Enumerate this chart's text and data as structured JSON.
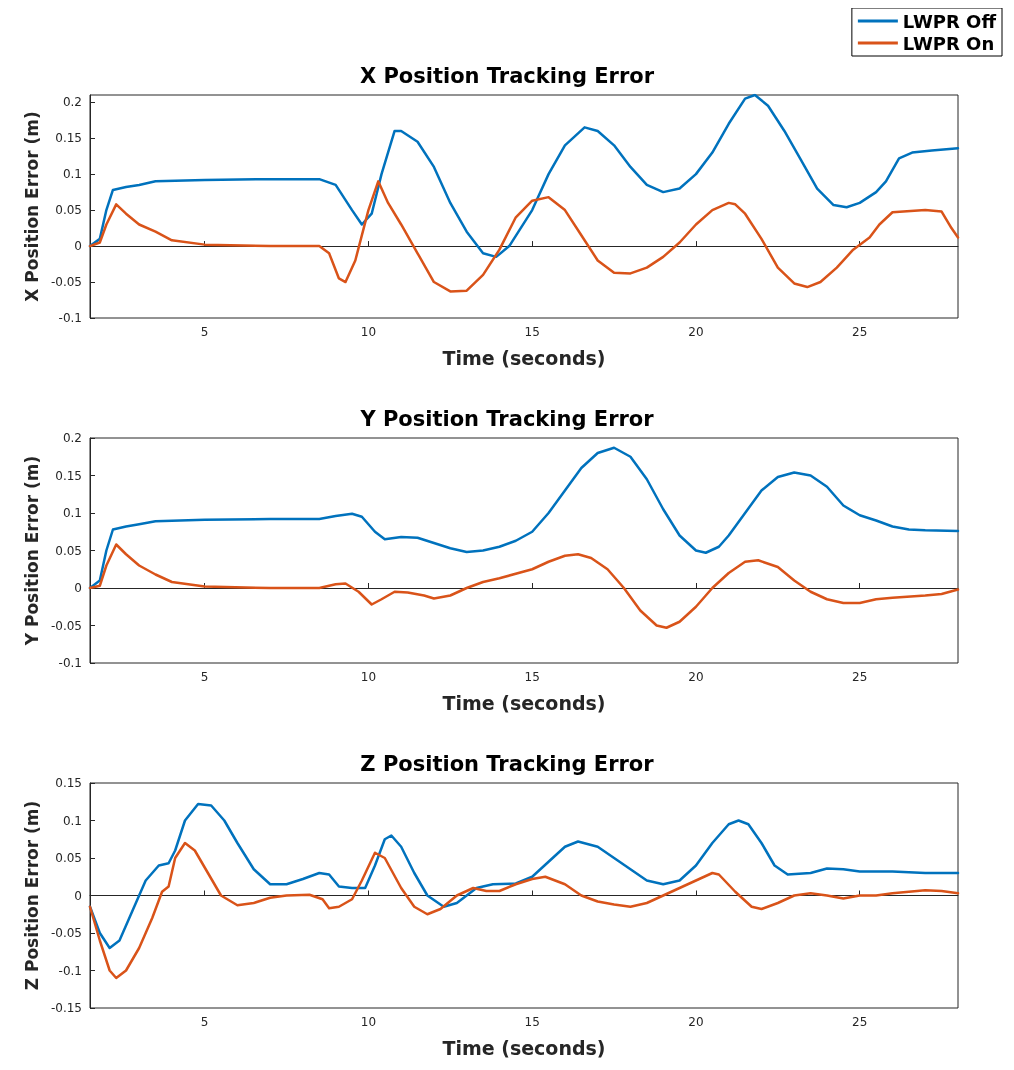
{
  "chart_data": [
    {
      "type": "line",
      "title": "X Position Tracking Error",
      "xlabel": "Time (seconds)",
      "ylabel": "X Position Error (m)",
      "xlim": [
        1.5,
        28
      ],
      "ylim": [
        -0.1,
        0.21
      ],
      "xticks": [
        5,
        10,
        15,
        20,
        25
      ],
      "yticks": [
        -0.1,
        -0.05,
        0,
        0.05,
        0.1,
        0.15,
        0.2
      ],
      "legend": "top right",
      "marker": "none",
      "line_style": "solid",
      "series": [
        {
          "name": "LWPR Off",
          "color": "#0072bd",
          "x": [
            1.5,
            1.8,
            2.0,
            2.2,
            2.6,
            3.0,
            3.5,
            5,
            7,
            8.5,
            9.0,
            9.5,
            9.8,
            10.1,
            10.4,
            10.8,
            11.0,
            11.5,
            12,
            12.5,
            13,
            13.5,
            13.9,
            14.3,
            15,
            15.5,
            16,
            16.6,
            17,
            17.5,
            18,
            18.5,
            19,
            19.5,
            20,
            20.5,
            21,
            21.5,
            21.8,
            22.2,
            22.7,
            23.2,
            23.7,
            24.2,
            24.6,
            25,
            25.5,
            25.8,
            26.2,
            26.6,
            27.2,
            28
          ],
          "values": [
            0,
            0.01,
            0.05,
            0.078,
            0.082,
            0.085,
            0.09,
            0.092,
            0.093,
            0.093,
            0.085,
            0.05,
            0.03,
            0.045,
            0.1,
            0.16,
            0.16,
            0.145,
            0.11,
            0.06,
            0.02,
            -0.01,
            -0.015,
            0,
            0.05,
            0.1,
            0.14,
            0.165,
            0.16,
            0.14,
            0.11,
            0.085,
            0.075,
            0.08,
            0.1,
            0.13,
            0.17,
            0.205,
            0.21,
            0.195,
            0.16,
            0.12,
            0.08,
            0.057,
            0.054,
            0.06,
            0.075,
            0.09,
            0.122,
            0.13,
            0.133,
            0.136
          ]
        },
        {
          "name": "LWPR On",
          "color": "#d95319",
          "x": [
            1.5,
            1.8,
            2.0,
            2.3,
            2.6,
            3,
            3.5,
            4,
            5,
            7,
            8.5,
            8.8,
            9.1,
            9.3,
            9.6,
            10,
            10.3,
            10.6,
            11,
            11.5,
            12,
            12.5,
            13,
            13.5,
            14,
            14.5,
            15,
            15.5,
            16,
            16.5,
            17,
            17.5,
            18,
            18.5,
            19,
            19.5,
            20,
            20.5,
            21,
            21.2,
            21.5,
            22,
            22.5,
            23,
            23.4,
            23.8,
            24.3,
            24.8,
            25.3,
            25.6,
            26,
            27,
            27.5,
            27.8,
            28
          ],
          "values": [
            0,
            0.005,
            0.03,
            0.058,
            0.045,
            0.03,
            0.02,
            0.008,
            0.002,
            0,
            0,
            -0.01,
            -0.045,
            -0.05,
            -0.02,
            0.05,
            0.09,
            0.06,
            0.03,
            -0.01,
            -0.05,
            -0.063,
            -0.062,
            -0.04,
            -0.005,
            0.04,
            0.063,
            0.068,
            0.05,
            0.015,
            -0.02,
            -0.037,
            -0.038,
            -0.03,
            -0.015,
            0.005,
            0.03,
            0.05,
            0.06,
            0.058,
            0.045,
            0.01,
            -0.03,
            -0.052,
            -0.057,
            -0.05,
            -0.03,
            -0.005,
            0.012,
            0.03,
            0.047,
            0.05,
            0.048,
            0.025,
            0.012
          ]
        }
      ]
    },
    {
      "type": "line",
      "title": "Y Position Tracking Error",
      "xlabel": "Time (seconds)",
      "ylabel": "Y Position Error (m)",
      "xlim": [
        1.5,
        28
      ],
      "ylim": [
        -0.1,
        0.2
      ],
      "xticks": [
        5,
        10,
        15,
        20,
        25
      ],
      "yticks": [
        -0.1,
        -0.05,
        0,
        0.05,
        0.1,
        0.15,
        0.2
      ],
      "marker": "none",
      "line_style": "solid",
      "series": [
        {
          "color": "#0072bd",
          "x": [
            1.5,
            1.8,
            2.0,
            2.2,
            2.6,
            3,
            3.5,
            5,
            7,
            8.5,
            9,
            9.5,
            9.8,
            10.2,
            10.5,
            11,
            11.5,
            12,
            12.5,
            13,
            13.5,
            14,
            14.5,
            15,
            15.5,
            16,
            16.5,
            17,
            17.5,
            18,
            18.5,
            19,
            19.5,
            20,
            20.3,
            20.7,
            21,
            21.5,
            22,
            22.5,
            23,
            23.5,
            24,
            24.5,
            25,
            25.5,
            26,
            26.5,
            27,
            28
          ],
          "values": [
            0,
            0.01,
            0.05,
            0.078,
            0.082,
            0.085,
            0.089,
            0.091,
            0.092,
            0.092,
            0.096,
            0.099,
            0.095,
            0.075,
            0.065,
            0.068,
            0.067,
            0.06,
            0.053,
            0.048,
            0.05,
            0.055,
            0.063,
            0.075,
            0.1,
            0.13,
            0.16,
            0.18,
            0.187,
            0.175,
            0.145,
            0.105,
            0.07,
            0.05,
            0.047,
            0.055,
            0.07,
            0.1,
            0.13,
            0.148,
            0.154,
            0.15,
            0.135,
            0.11,
            0.097,
            0.09,
            0.082,
            0.078,
            0.077,
            0.076
          ]
        },
        {
          "color": "#d95319",
          "x": [
            1.5,
            1.8,
            2.0,
            2.3,
            2.6,
            3,
            3.5,
            4,
            5,
            7,
            8.5,
            9,
            9.3,
            9.7,
            10.1,
            10.4,
            10.8,
            11.2,
            11.7,
            12,
            12.5,
            13,
            13.5,
            14,
            15,
            15.5,
            16,
            16.4,
            16.8,
            17.3,
            17.8,
            18.3,
            18.8,
            19.1,
            19.5,
            20,
            20.5,
            21,
            21.5,
            21.9,
            22.5,
            23,
            23.5,
            24,
            24.5,
            25,
            25.5,
            26,
            27,
            27.5,
            28
          ],
          "values": [
            0,
            0.003,
            0.03,
            0.058,
            0.045,
            0.03,
            0.018,
            0.008,
            0.002,
            0,
            0,
            0.005,
            0.006,
            -0.005,
            -0.022,
            -0.015,
            -0.005,
            -0.006,
            -0.01,
            -0.014,
            -0.01,
            0,
            0.008,
            0.013,
            0.025,
            0.035,
            0.043,
            0.045,
            0.04,
            0.025,
            0,
            -0.03,
            -0.05,
            -0.053,
            -0.045,
            -0.025,
            0,
            0.02,
            0.035,
            0.037,
            0.028,
            0.01,
            -0.005,
            -0.015,
            -0.02,
            -0.02,
            -0.015,
            -0.013,
            -0.01,
            -0.008,
            -0.002
          ]
        }
      ]
    },
    {
      "type": "line",
      "title": "Z Position Tracking Error",
      "xlabel": "Time (seconds)",
      "ylabel": "Z Position Error (m)",
      "xlim": [
        1.5,
        28
      ],
      "ylim": [
        -0.15,
        0.15
      ],
      "xticks": [
        5,
        10,
        15,
        20,
        25
      ],
      "yticks": [
        -0.15,
        -0.1,
        -0.05,
        0,
        0.05,
        0.1,
        0.15
      ],
      "marker": "none",
      "line_style": "solid",
      "series": [
        {
          "color": "#0072bd",
          "x": [
            1.5,
            1.8,
            2.1,
            2.4,
            2.8,
            3.2,
            3.6,
            3.9,
            4.1,
            4.4,
            4.8,
            5.2,
            5.6,
            6,
            6.5,
            7,
            7.5,
            8,
            8.5,
            8.8,
            9.1,
            9.5,
            9.9,
            10.2,
            10.5,
            10.7,
            11,
            11.4,
            11.8,
            12.3,
            12.7,
            13.3,
            13.8,
            14.5,
            15,
            15.5,
            16,
            16.4,
            17,
            17.5,
            18,
            18.5,
            19,
            19.5,
            20,
            20.5,
            21,
            21.3,
            21.6,
            22,
            22.4,
            22.8,
            23.5,
            24,
            24.5,
            25,
            26,
            27,
            28
          ],
          "values": [
            -0.015,
            -0.05,
            -0.07,
            -0.06,
            -0.02,
            0.02,
            0.04,
            0.043,
            0.06,
            0.1,
            0.122,
            0.12,
            0.1,
            0.07,
            0.035,
            0.015,
            0.015,
            0.022,
            0.03,
            0.028,
            0.012,
            0.01,
            0.01,
            0.04,
            0.075,
            0.08,
            0.065,
            0.03,
            0,
            -0.015,
            -0.01,
            0.01,
            0.015,
            0.016,
            0.025,
            0.045,
            0.065,
            0.072,
            0.065,
            0.05,
            0.035,
            0.02,
            0.015,
            0.02,
            0.04,
            0.07,
            0.095,
            0.1,
            0.095,
            0.07,
            0.04,
            0.028,
            0.03,
            0.036,
            0.035,
            0.032,
            0.032,
            0.03,
            0.03
          ]
        },
        {
          "color": "#d95319",
          "x": [
            1.5,
            1.8,
            2.1,
            2.3,
            2.6,
            3,
            3.4,
            3.7,
            3.9,
            4.1,
            4.4,
            4.7,
            5.1,
            5.5,
            6,
            6.5,
            7,
            7.5,
            8.2,
            8.6,
            8.8,
            9.1,
            9.5,
            9.8,
            10.2,
            10.5,
            11,
            11.4,
            11.8,
            12.2,
            12.7,
            13.2,
            13.6,
            14,
            14.5,
            15,
            15.4,
            16,
            16.5,
            17,
            17.5,
            18,
            18.5,
            19,
            19.5,
            20,
            20.5,
            20.7,
            21.2,
            21.7,
            22,
            22.5,
            23,
            23.5,
            24,
            24.5,
            25,
            25.5,
            26,
            27,
            27.5,
            28
          ],
          "values": [
            -0.015,
            -0.06,
            -0.1,
            -0.11,
            -0.1,
            -0.07,
            -0.03,
            0.005,
            0.012,
            0.05,
            0.07,
            0.06,
            0.03,
            0,
            -0.013,
            -0.01,
            -0.003,
            0,
            0.001,
            -0.005,
            -0.017,
            -0.015,
            -0.005,
            0.02,
            0.057,
            0.05,
            0.01,
            -0.015,
            -0.025,
            -0.018,
            0,
            0.01,
            0.006,
            0.006,
            0.015,
            0.022,
            0.025,
            0.015,
            0,
            -0.008,
            -0.012,
            -0.015,
            -0.01,
            0,
            0.01,
            0.02,
            0.03,
            0.028,
            0.005,
            -0.015,
            -0.018,
            -0.01,
            0,
            0.003,
            0,
            -0.004,
            0,
            0,
            0.003,
            0.007,
            0.006,
            0.003
          ]
        }
      ]
    }
  ]
}
